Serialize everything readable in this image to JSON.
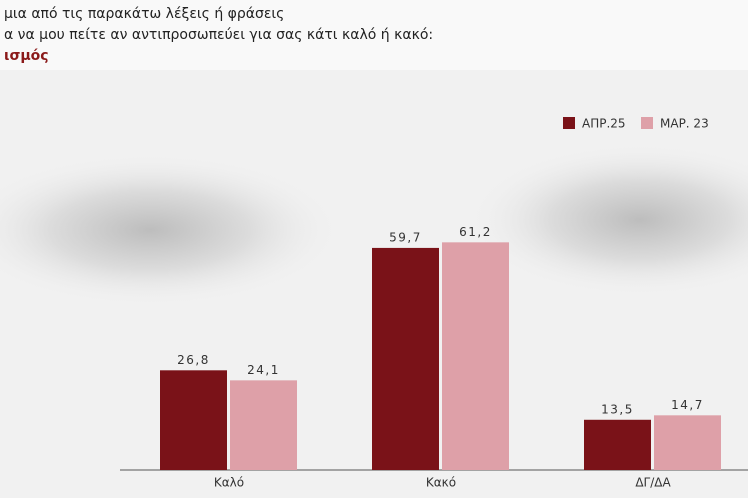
{
  "chart_data": {
    "type": "bar",
    "title": [
      "μια από τις παρακάτω λέξεις ή φράσεις",
      "α να μου πείτε αν αντιπροσωπεύει για σας κάτι καλό ή κακό:",
      "ισμός"
    ],
    "categories": [
      "Καλό",
      "Κακό",
      "ΔΓ/ΔΑ"
    ],
    "series": [
      {
        "name": "ΑΠΡ.25",
        "color": "#7a1218",
        "values": [
          26.8,
          59.7,
          13.5
        ],
        "value_labels": [
          "26,8",
          "59,7",
          "13,5"
        ]
      },
      {
        "name": "ΜΑΡ. 23",
        "color": "#dea0a8",
        "values": [
          24.1,
          61.2,
          14.7
        ],
        "value_labels": [
          "24,1",
          "61,2",
          "14,7"
        ]
      }
    ]
  }
}
